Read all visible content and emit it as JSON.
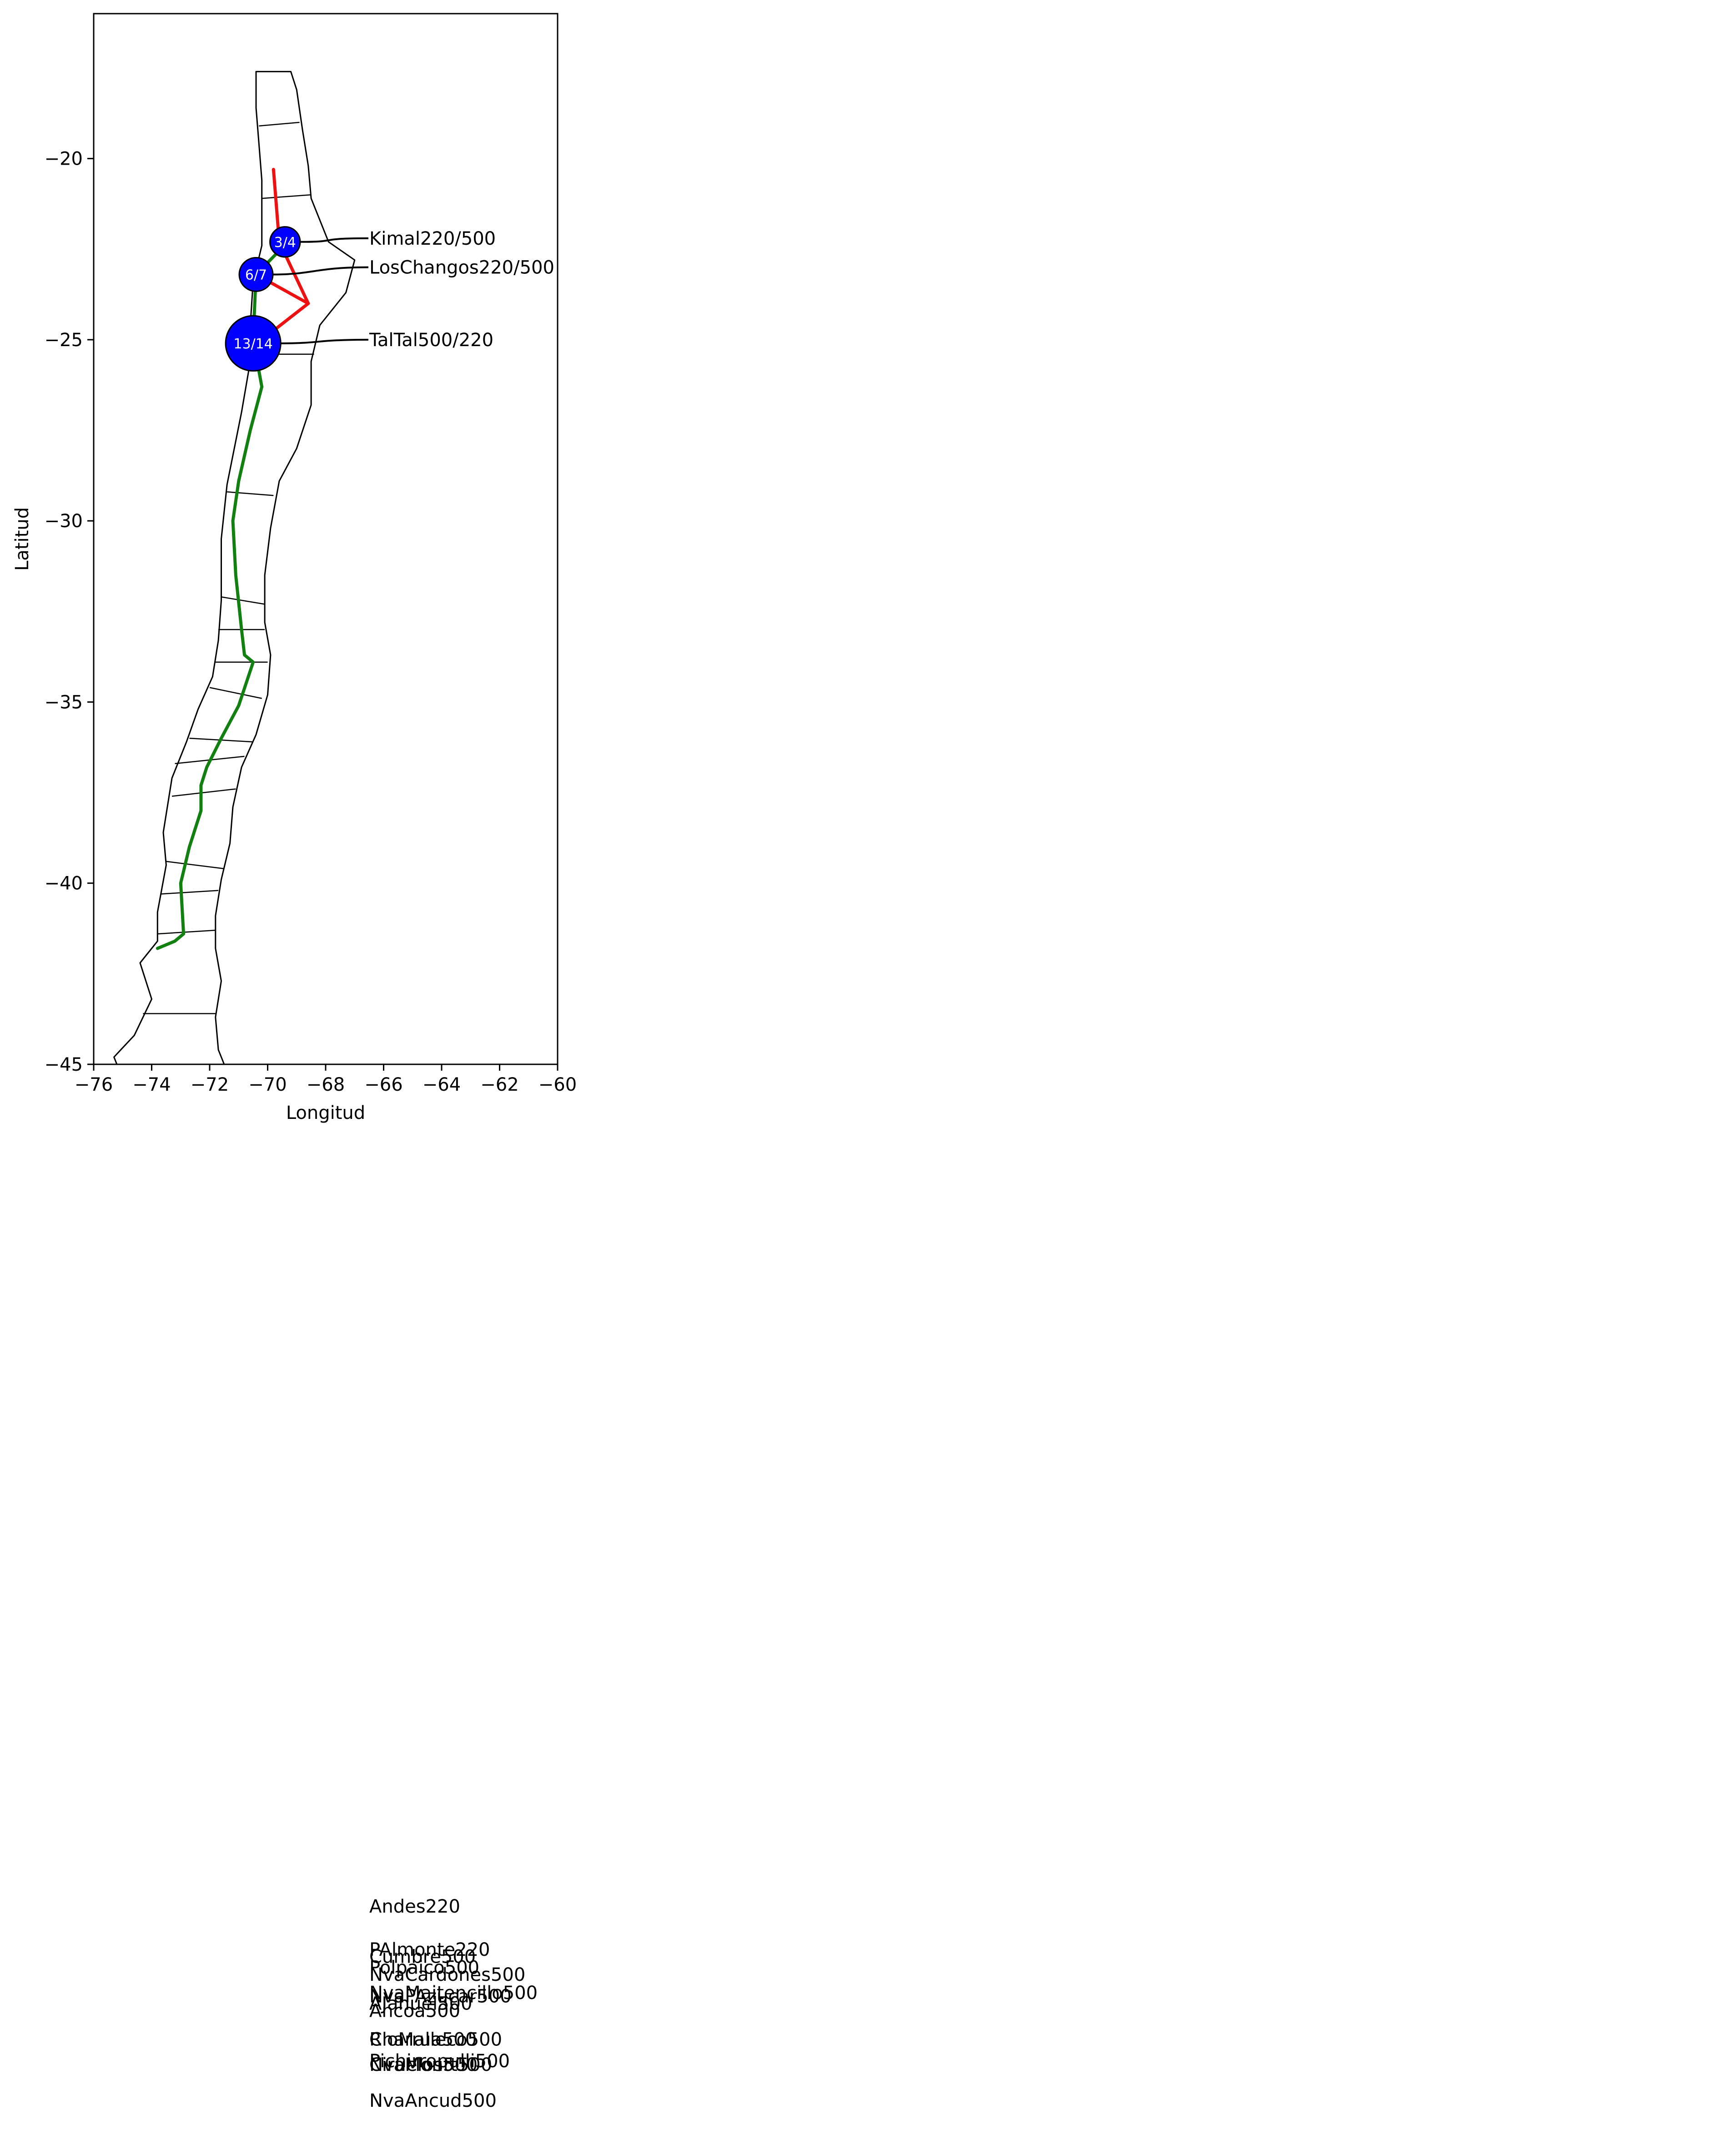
{
  "chart_data": {
    "type": "map",
    "xlabel": "Longitud",
    "ylabel": "Latitud",
    "xlim": [
      -76,
      -60
    ],
    "ylim": [
      -45,
      -16
    ],
    "x_ticks": [
      -76,
      -74,
      -72,
      -70,
      -68,
      -66,
      -64,
      -62,
      -60
    ],
    "y_ticks": [
      -20,
      -25,
      -30,
      -35,
      -40,
      -45
    ],
    "grid": false,
    "colors": {
      "frame": "#000000",
      "border": "#000000",
      "green_line": "#118011",
      "red_line": "#ee1111",
      "node_fill": "#0000ff",
      "node_edge": "#000000"
    },
    "country_outline": {
      "west": [
        [
          -70.4,
          -17.6
        ],
        [
          -70.4,
          -18.6
        ],
        [
          -70.3,
          -19.6
        ],
        [
          -70.2,
          -20.6
        ],
        [
          -70.2,
          -21.6
        ],
        [
          -70.2,
          -22.4
        ],
        [
          -70.5,
          -23.4
        ],
        [
          -70.6,
          -24.6
        ],
        [
          -70.6,
          -25.6
        ],
        [
          -70.9,
          -27.0
        ],
        [
          -71.4,
          -29.0
        ],
        [
          -71.6,
          -30.5
        ],
        [
          -71.6,
          -32.2
        ],
        [
          -71.7,
          -33.3
        ],
        [
          -71.9,
          -34.3
        ],
        [
          -72.4,
          -35.2
        ],
        [
          -72.8,
          -36.1
        ],
        [
          -73.3,
          -37.1
        ],
        [
          -73.6,
          -38.6
        ],
        [
          -73.5,
          -39.5
        ],
        [
          -73.8,
          -40.8
        ],
        [
          -73.8,
          -41.6
        ],
        [
          -74.4,
          -42.2
        ],
        [
          -74.0,
          -43.2
        ],
        [
          -74.6,
          -44.2
        ],
        [
          -75.3,
          -44.8
        ],
        [
          -75.2,
          -45.0
        ]
      ],
      "east": [
        [
          -69.2,
          -17.6
        ],
        [
          -69.0,
          -18.1
        ],
        [
          -68.8,
          -19.2
        ],
        [
          -68.6,
          -20.2
        ],
        [
          -68.5,
          -21.1
        ],
        [
          -67.9,
          -22.3
        ],
        [
          -67.0,
          -22.8
        ],
        [
          -67.3,
          -23.7
        ],
        [
          -68.2,
          -24.6
        ],
        [
          -68.5,
          -25.6
        ],
        [
          -68.5,
          -26.8
        ],
        [
          -69.0,
          -28.0
        ],
        [
          -69.6,
          -28.9
        ],
        [
          -69.9,
          -30.2
        ],
        [
          -70.1,
          -31.5
        ],
        [
          -70.1,
          -32.8
        ],
        [
          -69.9,
          -33.7
        ],
        [
          -70.0,
          -34.8
        ],
        [
          -70.4,
          -35.9
        ],
        [
          -70.9,
          -36.8
        ],
        [
          -71.2,
          -37.9
        ],
        [
          -71.3,
          -38.9
        ],
        [
          -71.6,
          -39.9
        ],
        [
          -71.8,
          -40.9
        ],
        [
          -71.8,
          -41.8
        ],
        [
          -71.6,
          -42.7
        ],
        [
          -71.8,
          -43.7
        ],
        [
          -71.7,
          -44.6
        ],
        [
          -71.5,
          -45.0
        ]
      ],
      "region_borders": [
        [
          [
            -70.3,
            -19.1
          ],
          [
            -68.9,
            -19.0
          ]
        ],
        [
          [
            -70.2,
            -21.1
          ],
          [
            -68.5,
            -21.0
          ]
        ],
        [
          [
            -70.6,
            -25.4
          ],
          [
            -68.4,
            -25.4
          ]
        ],
        [
          [
            -71.4,
            -29.2
          ],
          [
            -69.8,
            -29.3
          ]
        ],
        [
          [
            -71.6,
            -32.1
          ],
          [
            -70.1,
            -32.3
          ]
        ],
        [
          [
            -71.7,
            -33.0
          ],
          [
            -70.1,
            -33.0
          ]
        ],
        [
          [
            -71.8,
            -33.9
          ],
          [
            -70.0,
            -33.9
          ]
        ],
        [
          [
            -72.0,
            -34.6
          ],
          [
            -70.2,
            -34.9
          ]
        ],
        [
          [
            -72.7,
            -36.0
          ],
          [
            -70.5,
            -36.1
          ]
        ],
        [
          [
            -73.2,
            -36.7
          ],
          [
            -70.8,
            -36.5
          ]
        ],
        [
          [
            -73.3,
            -37.6
          ],
          [
            -71.1,
            -37.4
          ]
        ],
        [
          [
            -73.5,
            -39.4
          ],
          [
            -71.5,
            -39.6
          ]
        ],
        [
          [
            -73.7,
            -40.3
          ],
          [
            -71.7,
            -40.2
          ]
        ],
        [
          [
            -73.8,
            -41.4
          ],
          [
            -71.8,
            -41.3
          ]
        ],
        [
          [
            -74.3,
            -43.6
          ],
          [
            -71.8,
            -43.6
          ]
        ]
      ]
    },
    "lines": [
      {
        "color": "green",
        "points": [
          [
            -69.3,
            -22.3
          ],
          [
            -70.4,
            -23.2
          ],
          [
            -70.5,
            -25.0
          ],
          [
            -70.2,
            -26.3
          ],
          [
            -70.6,
            -27.5
          ],
          [
            -71.0,
            -28.9
          ],
          [
            -71.2,
            -30.0
          ],
          [
            -71.1,
            -31.5
          ],
          [
            -70.9,
            -33.0
          ],
          [
            -70.8,
            -33.7
          ],
          [
            -70.5,
            -33.9
          ],
          [
            -71.0,
            -35.1
          ],
          [
            -71.6,
            -36.0
          ],
          [
            -72.1,
            -36.8
          ],
          [
            -72.3,
            -37.3
          ],
          [
            -72.3,
            -38.0
          ],
          [
            -72.7,
            -39.0
          ],
          [
            -73.0,
            -40.0
          ],
          [
            -72.9,
            -41.4
          ],
          [
            -73.2,
            -41.6
          ],
          [
            -73.8,
            -41.8
          ]
        ]
      },
      {
        "color": "red",
        "points": [
          [
            -69.8,
            -20.3
          ],
          [
            -69.6,
            -22.3
          ],
          [
            -68.6,
            -24.0
          ],
          [
            -70.4,
            -23.2
          ]
        ]
      },
      {
        "color": "red",
        "points": [
          [
            -68.6,
            -24.0
          ],
          [
            -70.2,
            -25.0
          ]
        ]
      }
    ],
    "nodes": [
      {
        "label": "3/4",
        "name": "Kimal220/500",
        "lon": -69.4,
        "lat": -22.3,
        "r": 0.52
      },
      {
        "label": "6/7",
        "name": "LosChangos220/500",
        "lon": -70.4,
        "lat": -23.2,
        "r": 0.58
      },
      {
        "label": "13/14",
        "name": "TalTal500/220",
        "lon": -70.5,
        "lat": -25.1,
        "r": 0.95
      }
    ],
    "callout_labels": [
      {
        "text": "Kimal220/500",
        "lat": -22.2
      },
      {
        "text": "LosChangos220/500",
        "lat": -23.0
      },
      {
        "text": "TalTal500/220",
        "lat": -25.0
      }
    ],
    "overflow_labels": [
      {
        "text": "Andes220",
        "lat": -69.1
      },
      {
        "text": "PAlmonte220",
        "lat": -70.3
      },
      {
        "text": "Cumbre500",
        "lat": -70.5
      },
      {
        "text": "Polpaico500",
        "lat": -70.8
      },
      {
        "text": "NvaCardones500",
        "lat": -71.0
      },
      {
        "text": "NvaMaitencillo500",
        "lat": -71.5
      },
      {
        "text": "NvaPAzucar500",
        "lat": -71.6
      },
      {
        "text": "AJahuel500",
        "lat": -71.8
      },
      {
        "text": "Ancoa500",
        "lat": -72.0
      },
      {
        "text": "Charrua500",
        "lat": -72.8
      },
      {
        "text": "RioMalleco500",
        "lat": -72.8
      },
      {
        "text": "Pichirropulli500",
        "lat": -73.4
      },
      {
        "text": "Ciruelos500",
        "lat": -73.5
      },
      {
        "text": "NvaMontt500",
        "lat": -73.5
      },
      {
        "text": "NvaAncud500",
        "lat": -74.5
      }
    ]
  }
}
